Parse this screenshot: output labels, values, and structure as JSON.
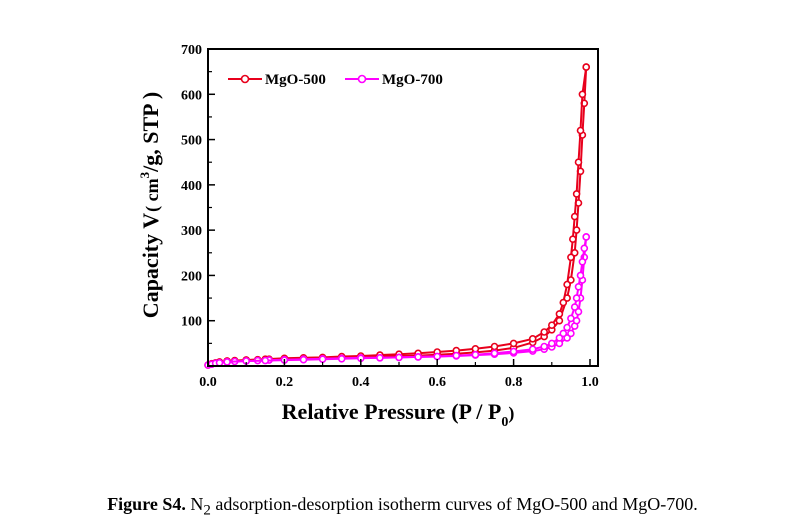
{
  "chart_data": {
    "type": "line",
    "x_axis": {
      "title_main": "Relative Pressure",
      "title_paren": "(P / P",
      "title_sub": "0",
      "title_close": ")",
      "ticks": [
        "0.0",
        "0.2",
        "0.4",
        "0.6",
        "0.8",
        "1.0"
      ],
      "xlim": [
        0,
        1.0
      ]
    },
    "y_axis": {
      "title_main": "Capacity V",
      "title_paren": "( cm",
      "title_sup": "3",
      "title_rest": "/g, STP )",
      "ticks": [
        "100",
        "200",
        "300",
        "400",
        "500",
        "600",
        "700"
      ],
      "ylim": [
        0,
        700
      ]
    },
    "grid": false,
    "legend_position": "top-left",
    "series": [
      {
        "name": "MgO-500",
        "color": "#e8001c",
        "adsorption": {
          "x": [
            0.0,
            0.01,
            0.02,
            0.03,
            0.05,
            0.07,
            0.1,
            0.13,
            0.16,
            0.2,
            0.25,
            0.3,
            0.35,
            0.4,
            0.45,
            0.5,
            0.55,
            0.6,
            0.65,
            0.7,
            0.75,
            0.8,
            0.85,
            0.88,
            0.9,
            0.92,
            0.94,
            0.95,
            0.96,
            0.965,
            0.97,
            0.975,
            0.98,
            0.985,
            0.99
          ],
          "y": [
            2,
            5,
            7,
            9,
            11,
            12,
            13,
            14,
            15,
            16,
            17,
            18,
            19,
            20,
            21,
            22,
            23,
            25,
            27,
            30,
            34,
            40,
            52,
            65,
            80,
            100,
            150,
            190,
            250,
            300,
            360,
            430,
            510,
            580,
            660
          ]
        },
        "desorption": {
          "x": [
            0.99,
            0.98,
            0.975,
            0.97,
            0.965,
            0.96,
            0.955,
            0.95,
            0.94,
            0.93,
            0.92,
            0.9,
            0.88,
            0.85,
            0.8,
            0.75,
            0.7,
            0.65,
            0.6,
            0.55,
            0.5,
            0.45,
            0.4,
            0.35,
            0.3,
            0.25,
            0.2,
            0.15,
            0.1,
            0.05
          ],
          "y": [
            660,
            600,
            520,
            450,
            380,
            330,
            280,
            240,
            180,
            140,
            115,
            90,
            75,
            60,
            50,
            43,
            38,
            34,
            31,
            28,
            26,
            24,
            22,
            21,
            19,
            18,
            17,
            15,
            13,
            11
          ]
        }
      },
      {
        "name": "MgO-700",
        "color": "#ff00ff",
        "adsorption": {
          "x": [
            0.0,
            0.01,
            0.02,
            0.03,
            0.05,
            0.07,
            0.1,
            0.13,
            0.16,
            0.2,
            0.25,
            0.3,
            0.35,
            0.4,
            0.45,
            0.5,
            0.55,
            0.6,
            0.65,
            0.7,
            0.75,
            0.8,
            0.85,
            0.88,
            0.9,
            0.92,
            0.94,
            0.95,
            0.96,
            0.965,
            0.97,
            0.975,
            0.98,
            0.985,
            0.99
          ],
          "y": [
            2,
            4,
            6,
            7,
            9,
            10,
            11,
            12,
            13,
            14,
            15,
            16,
            17,
            18,
            18,
            19,
            20,
            21,
            22,
            24,
            26,
            29,
            33,
            37,
            42,
            50,
            62,
            72,
            88,
            100,
            120,
            150,
            190,
            240,
            285
          ]
        },
        "desorption": {
          "x": [
            0.99,
            0.985,
            0.98,
            0.975,
            0.97,
            0.965,
            0.96,
            0.95,
            0.94,
            0.93,
            0.92,
            0.9,
            0.88,
            0.85,
            0.8,
            0.75,
            0.7,
            0.65,
            0.6,
            0.55,
            0.5,
            0.45,
            0.4,
            0.35,
            0.3,
            0.25,
            0.2,
            0.15,
            0.1,
            0.05
          ],
          "y": [
            285,
            260,
            230,
            200,
            175,
            150,
            130,
            105,
            85,
            72,
            62,
            50,
            43,
            37,
            32,
            28,
            25,
            23,
            21,
            20,
            19,
            18,
            17,
            16,
            15,
            14,
            13,
            12,
            11,
            9
          ]
        }
      }
    ]
  },
  "caption": {
    "label": "Figure S4.",
    "text_before": " N",
    "sub": "2",
    "text_after": " adsorption-desorption isotherm curves of MgO-500 and MgO-700."
  }
}
